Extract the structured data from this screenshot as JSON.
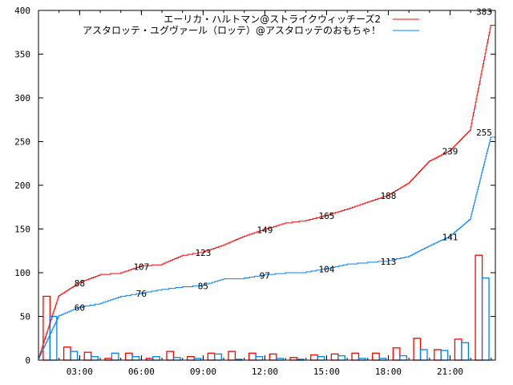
{
  "chart_data": {
    "type": "bar+line",
    "title": "",
    "xlabel": "",
    "ylabel": "",
    "ylim": [
      0,
      400
    ],
    "xlim_hours": [
      1,
      23.2
    ],
    "yticks": [
      0,
      50,
      100,
      150,
      200,
      250,
      300,
      350,
      400
    ],
    "xticks": [
      {
        "h": 3,
        "label": "03:00"
      },
      {
        "h": 6,
        "label": "06:00"
      },
      {
        "h": 9,
        "label": "09:00"
      },
      {
        "h": 12,
        "label": "12:00"
      },
      {
        "h": 15,
        "label": "15:00"
      },
      {
        "h": 18,
        "label": "18:00"
      },
      {
        "h": 21,
        "label": "21:00"
      }
    ],
    "grid": false,
    "legend_position": "top-right",
    "hours": [
      1,
      2,
      3,
      4,
      5,
      6,
      7,
      8,
      9,
      10,
      11,
      12,
      13,
      14,
      15,
      16,
      17,
      18,
      19,
      20,
      21,
      22
    ],
    "series": [
      {
        "name": "エーリカ・ハルトマン@ストライクウィッチーズ2",
        "color": "#ff0000",
        "hourly": [
          73,
          15,
          9,
          2,
          8,
          2,
          10,
          4,
          8,
          10,
          8,
          7,
          3,
          6,
          7,
          8,
          8,
          14,
          25,
          12,
          24,
          120
        ],
        "cumulative_labels": [
          {
            "h": 3,
            "v": "88"
          },
          {
            "h": 6,
            "v": "107"
          },
          {
            "h": 9,
            "v": "123"
          },
          {
            "h": 12,
            "v": "149"
          },
          {
            "h": 15,
            "v": "165"
          },
          {
            "h": 18,
            "v": "188"
          },
          {
            "h": 21,
            "v": "239"
          }
        ],
        "total": "383"
      },
      {
        "name": "アスタロッテ・ユグヴァール（ロッテ）@アスタロッテのおもちゃ！",
        "color": "#0080ff",
        "hourly": [
          50,
          10,
          4,
          8,
          4,
          4,
          3,
          2,
          7,
          1,
          4,
          2,
          1,
          4,
          5,
          2,
          2,
          5,
          12,
          11,
          20,
          94
        ],
        "cumulative_labels": [
          {
            "h": 3,
            "v": "60"
          },
          {
            "h": 6,
            "v": "76"
          },
          {
            "h": 9,
            "v": "85"
          },
          {
            "h": 12,
            "v": "97"
          },
          {
            "h": 15,
            "v": "104"
          },
          {
            "h": 18,
            "v": "113"
          },
          {
            "h": 21,
            "v": "141"
          }
        ],
        "total": "255"
      }
    ]
  }
}
